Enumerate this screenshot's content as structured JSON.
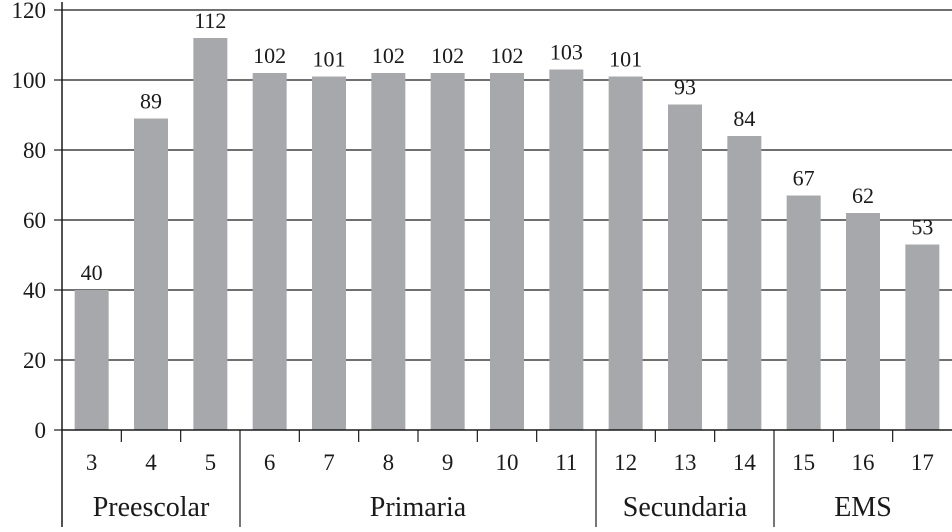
{
  "chart_data": {
    "type": "bar",
    "categories": [
      "3",
      "4",
      "5",
      "6",
      "7",
      "8",
      "9",
      "10",
      "11",
      "12",
      "13",
      "14",
      "15",
      "16",
      "17"
    ],
    "values": [
      40,
      89,
      112,
      102,
      101,
      102,
      102,
      102,
      103,
      101,
      93,
      84,
      67,
      62,
      53
    ],
    "data_labels": [
      "40",
      "89",
      "112",
      "102",
      "101",
      "102",
      "102",
      "102",
      "103",
      "101",
      "93",
      "84",
      "67",
      "62",
      "53"
    ],
    "groups": [
      {
        "label": "Preescolar",
        "categories": [
          "3",
          "4",
          "5"
        ]
      },
      {
        "label": "Primaria",
        "categories": [
          "6",
          "7",
          "8",
          "9",
          "10",
          "11"
        ]
      },
      {
        "label": "Secundaria",
        "categories": [
          "12",
          "13",
          "14"
        ]
      },
      {
        "label": "EMS",
        "categories": [
          "15",
          "16",
          "17"
        ]
      }
    ],
    "ylim": [
      0,
      120
    ],
    "yticks": [
      "0",
      "20",
      "40",
      "60",
      "80",
      "100",
      "120"
    ],
    "grid": true,
    "bar_color": "#a7a8ab",
    "grid_color": "#1a1a1a",
    "title": "",
    "xlabel": "",
    "ylabel": ""
  }
}
